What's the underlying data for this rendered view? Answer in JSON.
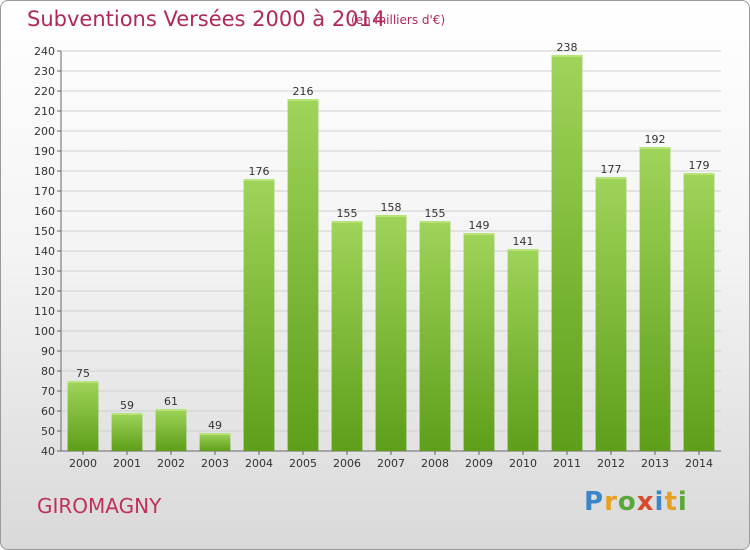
{
  "header": {
    "title": "Subventions Versées 2000 à 2014",
    "subtitle": "(en milliers d'€)"
  },
  "footer": {
    "place": "GIROMAGNY",
    "logo_letters": [
      "P",
      "r",
      "o",
      "x",
      "i",
      "t",
      "i"
    ],
    "logo_colors": [
      "#3a86c8",
      "#e8a020",
      "#5aa83a",
      "#d84a2a",
      "#3a86c8",
      "#e8a020",
      "#5aa83a"
    ]
  },
  "colors": {
    "title": "#b0285a",
    "bar_top": "#9fd45a",
    "bar_bottom": "#5e9e1a",
    "grid": "#d0d0d0"
  },
  "chart_data": {
    "type": "bar",
    "title": "Subventions Versées 2000 à 2014",
    "subtitle": "(en milliers d'€)",
    "categories": [
      "2000",
      "2001",
      "2002",
      "2003",
      "2004",
      "2005",
      "2006",
      "2007",
      "2008",
      "2009",
      "2010",
      "2011",
      "2012",
      "2013",
      "2014"
    ],
    "values": [
      75,
      59,
      61,
      49,
      176,
      216,
      155,
      158,
      155,
      149,
      141,
      238,
      177,
      192,
      179
    ],
    "ylim": [
      40,
      240
    ],
    "ytick_step": 10,
    "grid": true,
    "legend": "none"
  }
}
